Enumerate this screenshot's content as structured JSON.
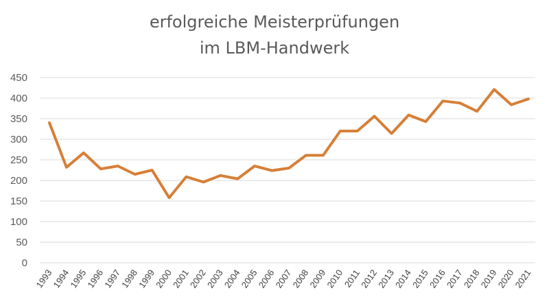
{
  "chart_data": {
    "type": "line",
    "title_lines": [
      "erfolgreiche Meisterprüfungen",
      "im LBM-Handwerk"
    ],
    "xlabel": "",
    "ylabel": "",
    "ylim": [
      0,
      450
    ],
    "yticks": [
      0,
      50,
      100,
      150,
      200,
      250,
      300,
      350,
      400,
      450
    ],
    "grid": true,
    "legend": "none",
    "categories": [
      "1993",
      "1994",
      "1995",
      "1996",
      "1997",
      "1998",
      "1999",
      "2000",
      "2001",
      "2002",
      "2003",
      "2004",
      "2005",
      "2006",
      "2007",
      "2008",
      "2009",
      "2010",
      "2011",
      "2012",
      "2013",
      "2014",
      "2015",
      "2016",
      "2017",
      "2018",
      "2019",
      "2020",
      "2021"
    ],
    "series": [
      {
        "color": "#d67f37",
        "values": [
          340,
          232,
          267,
          228,
          235,
          215,
          225,
          158,
          209,
          196,
          212,
          204,
          235,
          224,
          230,
          261,
          261,
          320,
          320,
          356,
          314,
          359,
          343,
          393,
          388,
          368,
          421,
          384,
          398
        ]
      }
    ],
    "colors": {
      "gridline": "#d9d9d9",
      "axis": "#d9d9d9",
      "line": "#d67f37"
    }
  }
}
